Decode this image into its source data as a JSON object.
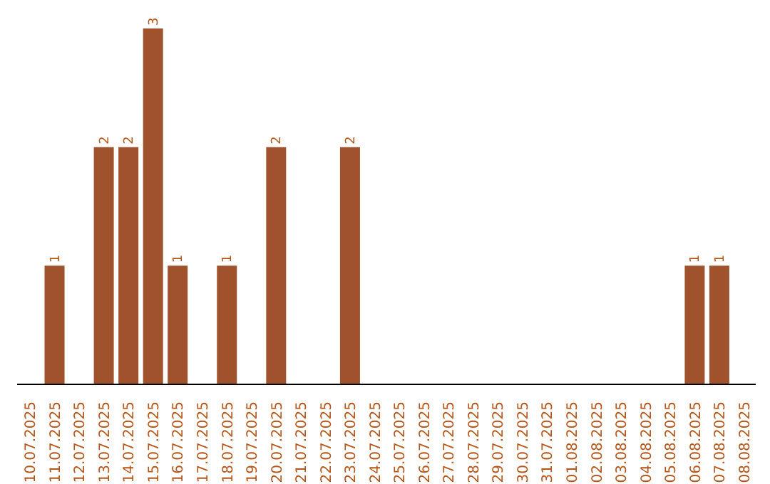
{
  "chart_data": {
    "type": "bar",
    "categories": [
      "10.07.2025",
      "11.07.2025",
      "12.07.2025",
      "13.07.2025",
      "14.07.2025",
      "15.07.2025",
      "16.07.2025",
      "17.07.2025",
      "18.07.2025",
      "19.07.2025",
      "20.07.2025",
      "21.07.2025",
      "22.07.2025",
      "23.07.2025",
      "24.07.2025",
      "25.07.2025",
      "26.07.2025",
      "27.07.2025",
      "28.07.2025",
      "29.07.2025",
      "30.07.2025",
      "31.07.2025",
      "01.08.2025",
      "02.08.2025",
      "03.08.2025",
      "04.08.2025",
      "05.08.2025",
      "06.08.2025",
      "07.08.2025",
      "08.08.2025"
    ],
    "values": [
      0,
      1,
      0,
      2,
      2,
      3,
      1,
      0,
      1,
      0,
      2,
      0,
      0,
      2,
      0,
      0,
      0,
      0,
      0,
      0,
      0,
      0,
      0,
      0,
      0,
      0,
      0,
      1,
      1,
      0
    ],
    "value_labels": [
      null,
      "1",
      null,
      "2",
      "2",
      "3",
      "1",
      null,
      "1",
      null,
      "2",
      null,
      null,
      "2",
      null,
      null,
      null,
      null,
      null,
      null,
      null,
      null,
      null,
      null,
      null,
      null,
      null,
      "1",
      "1",
      null
    ],
    "color": "#a0522d",
    "tick_labels": "x",
    "grid": false
  }
}
